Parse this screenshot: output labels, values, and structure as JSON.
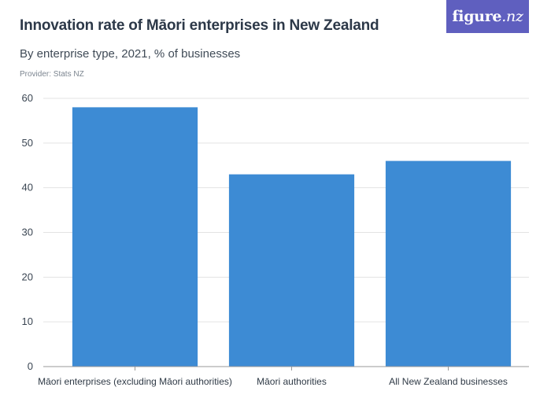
{
  "header": {
    "title": "Innovation rate of Māori enterprises in New Zealand",
    "subtitle": "By enterprise type, 2021, % of businesses",
    "provider": "Provider: Stats NZ",
    "logo": {
      "name": "figure",
      "dot": ".nz"
    }
  },
  "colors": {
    "bar": "#3d8bd4",
    "grid": "#e3e3e3",
    "axis": "#9a9a9a",
    "logo_bg": "#5f5fbf"
  },
  "chart_data": {
    "type": "bar",
    "title": "Innovation rate of Māori enterprises in New Zealand",
    "subtitle": "By enterprise type, 2021, % of businesses",
    "categories": [
      "Māori enterprises (excluding Māori authorities)",
      "Māori authorities",
      "All New Zealand businesses"
    ],
    "values": [
      58,
      43,
      46
    ],
    "xlabel": "",
    "ylabel": "",
    "ylim": [
      0,
      60
    ],
    "yticks": [
      0,
      10,
      20,
      30,
      40,
      50,
      60
    ],
    "grid": true,
    "legend": "none"
  }
}
